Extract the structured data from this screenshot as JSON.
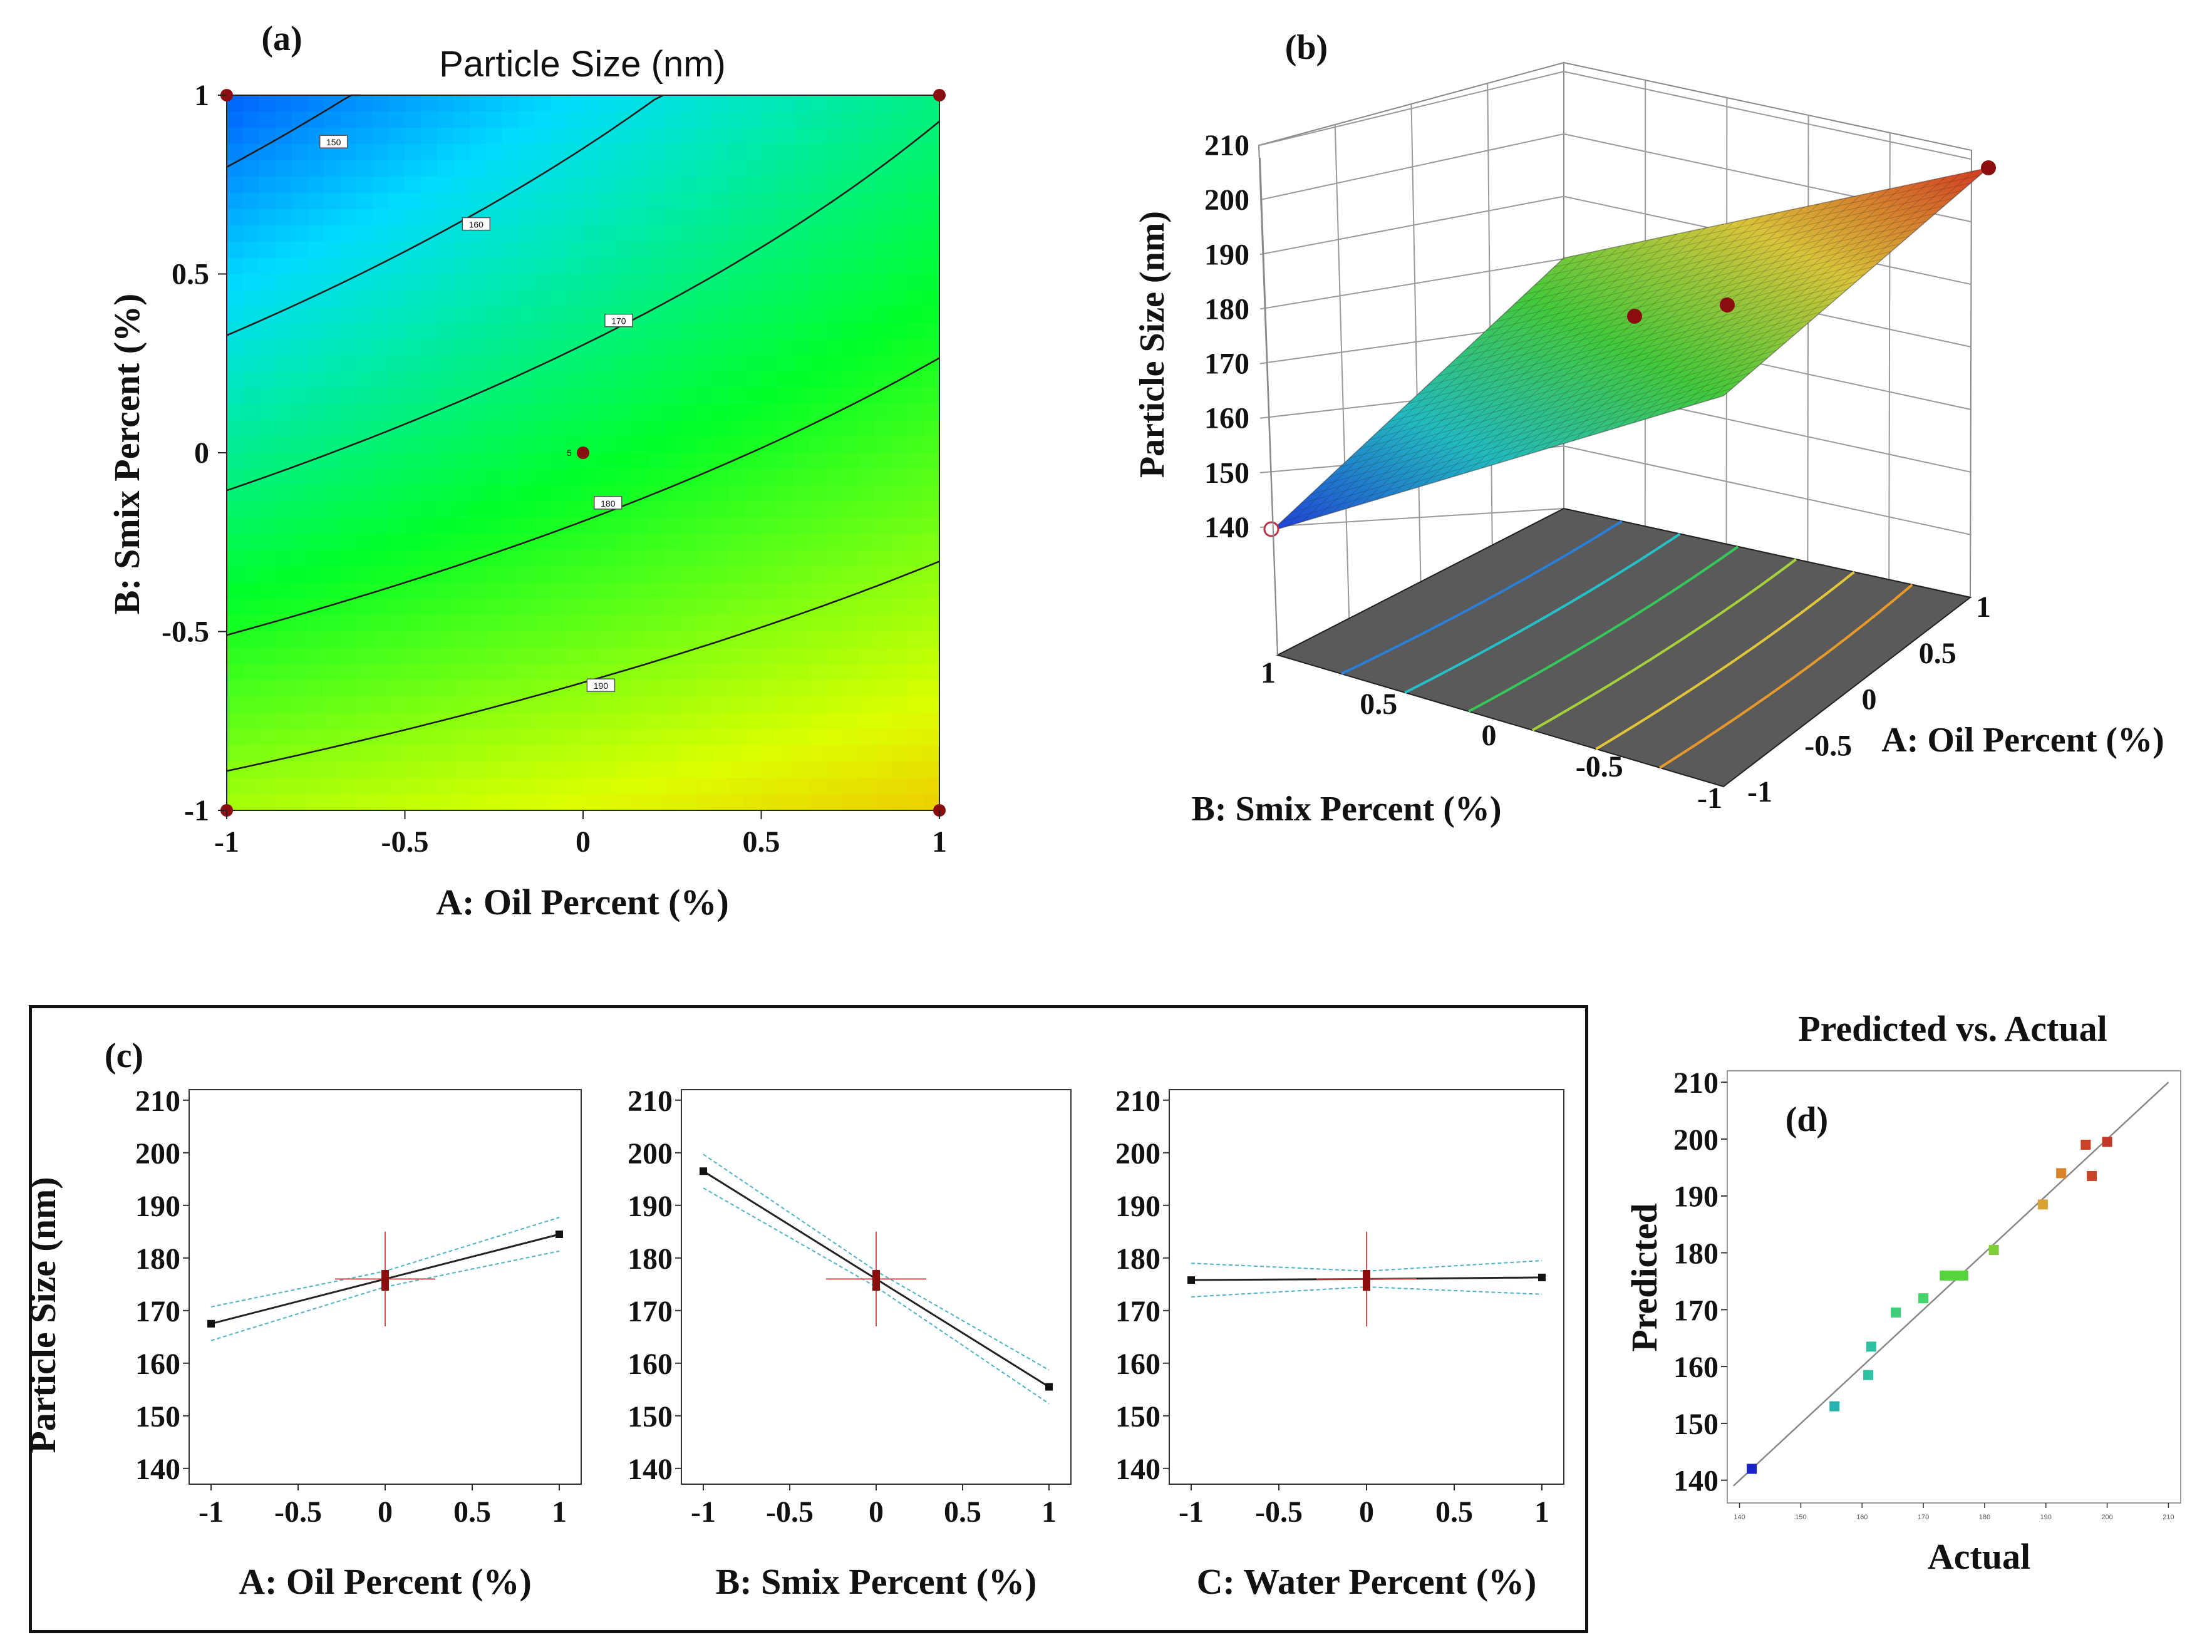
{
  "chart_data": [
    {
      "id": "a",
      "type": "heatmap",
      "subtype": "contour",
      "panel_label": "(a)",
      "title": "Particle Size (nm)",
      "xlabel": "A: Oil Percent (%)",
      "ylabel": "B: Smix Percent (%)",
      "xlim": [
        -1,
        1
      ],
      "ylim": [
        -1,
        1
      ],
      "xticks": [
        -1,
        -0.5,
        0,
        0.5,
        1
      ],
      "yticks": [
        -1,
        -0.5,
        0,
        0.5,
        1
      ],
      "xtick_labels": [
        "-1",
        "-0.5",
        "0",
        "0.5",
        "1"
      ],
      "ytick_labels": [
        "-1",
        "-0.5",
        "0",
        "0.5",
        "1"
      ],
      "contour_levels": [
        150,
        160,
        170,
        180,
        190
      ],
      "contour_labels": [
        "150",
        "160",
        "170",
        "180",
        "190"
      ],
      "design_points": [
        {
          "x": -1,
          "y": 1
        },
        {
          "x": 1,
          "y": 1
        },
        {
          "x": -1,
          "y": -1
        },
        {
          "x": 1,
          "y": -1
        },
        {
          "x": 0,
          "y": 0
        }
      ],
      "center_replicates": "5",
      "colors": {
        "low": "#0033ff",
        "mid": "#00ff00",
        "high": "#ff0000"
      }
    },
    {
      "id": "b",
      "type": "area",
      "subtype": "3d-surface",
      "panel_label": "(b)",
      "zlabel": "Particle Size (nm)",
      "xlabel": "A: Oil Percent (%)",
      "ylabel": "B: Smix Percent (%)",
      "zlim": [
        140,
        210
      ],
      "zticks": [
        140,
        150,
        160,
        170,
        180,
        190,
        200,
        210
      ],
      "ztick_labels": [
        "140",
        "150",
        "160",
        "170",
        "180",
        "190",
        "200",
        "210"
      ],
      "xticks": [
        -1,
        -0.5,
        0,
        0.5,
        1
      ],
      "xtick_labels": [
        "-1",
        "-0.5",
        "0",
        "0.5",
        "1"
      ],
      "yticks": [
        -1,
        -0.5,
        0,
        0.5,
        1
      ],
      "ytick_labels": [
        "-1",
        "-0.5",
        "0",
        "0.5",
        "1"
      ],
      "corner_values": {
        "A_-1_B_1": 141,
        "A_1_B_1": 160,
        "A_-1_B_-1": 180,
        "A_1_B_-1": 204
      },
      "design_points": [
        {
          "A": 1,
          "B": -1,
          "z": 204
        },
        {
          "A": 0,
          "B": 0,
          "z": 176
        },
        {
          "A": 0.2,
          "B": -0.2,
          "z": 180
        },
        {
          "A": -1,
          "B": 1,
          "z": 141
        }
      ]
    },
    {
      "id": "c",
      "type": "line",
      "subtype": "one-factor-effects",
      "panel_label": "(c)",
      "ylabel": "Particle Size (nm)",
      "ylim": [
        137,
        212
      ],
      "yticks": [
        140,
        150,
        160,
        170,
        180,
        190,
        200,
        210
      ],
      "ytick_labels": [
        "140",
        "150",
        "160",
        "170",
        "180",
        "190",
        "200",
        "210"
      ],
      "xticks": [
        -1,
        -0.5,
        0,
        0.5,
        1
      ],
      "xtick_labels": [
        "-1",
        "-0.5",
        "0",
        "0.5",
        "1"
      ],
      "subplots": [
        {
          "xlabel": "A: Oil Percent (%)",
          "x": [
            -1,
            0,
            1
          ],
          "y": [
            167.5,
            176,
            184.5
          ],
          "ci_halfwidth": [
            3.2,
            1.5,
            3.2
          ],
          "center_points": [
            177,
            176,
            175,
            174.5,
            176.5
          ],
          "center_error": 9
        },
        {
          "xlabel": "B: Smix Percent (%)",
          "x": [
            -1,
            0,
            1
          ],
          "y": [
            196.5,
            176,
            155.5
          ],
          "ci_halfwidth": [
            3.2,
            1.5,
            3.2
          ],
          "center_points": [
            177,
            176,
            175,
            174.5,
            176.5
          ],
          "center_error": 9
        },
        {
          "xlabel": "C: Water Percent (%)",
          "x": [
            -1,
            0,
            1
          ],
          "y": [
            175.8,
            176,
            176.3
          ],
          "ci_halfwidth": [
            3.2,
            1.5,
            3.2
          ],
          "center_points": [
            177,
            176,
            175,
            174.5,
            176.5
          ],
          "center_error": 9
        }
      ]
    },
    {
      "id": "d",
      "type": "scatter",
      "panel_label": "(d)",
      "title": "Predicted vs. Actual",
      "xlabel": "Actual",
      "ylabel": "Predicted",
      "xlim": [
        140,
        210
      ],
      "ylim": [
        136,
        212
      ],
      "xticks": [
        140,
        150,
        160,
        170,
        180,
        190,
        200,
        210
      ],
      "xtick_labels": [
        "140",
        "150",
        "160",
        "170",
        "180",
        "190",
        "200",
        "210"
      ],
      "yticks": [
        140,
        150,
        160,
        170,
        180,
        190,
        200,
        210
      ],
      "ytick_labels": [
        "140",
        "150",
        "160",
        "170",
        "180",
        "190",
        "200",
        "210"
      ],
      "points": [
        {
          "x": 142,
          "y": 142,
          "color": "#1a24c8"
        },
        {
          "x": 155.5,
          "y": 153,
          "color": "#27b3b0"
        },
        {
          "x": 161,
          "y": 158.5,
          "color": "#2ec2a4"
        },
        {
          "x": 161.5,
          "y": 163.5,
          "color": "#2ec2a4"
        },
        {
          "x": 165.5,
          "y": 169.5,
          "color": "#3ccf7a"
        },
        {
          "x": 170,
          "y": 172,
          "color": "#44d46a"
        },
        {
          "x": 173.5,
          "y": 176,
          "color": "#56d43e"
        },
        {
          "x": 175,
          "y": 176,
          "color": "#56d43e"
        },
        {
          "x": 176.5,
          "y": 176,
          "color": "#56d43e"
        },
        {
          "x": 181.5,
          "y": 180.5,
          "color": "#7ecf3a"
        },
        {
          "x": 189.5,
          "y": 188.5,
          "color": "#d9a233"
        },
        {
          "x": 192.5,
          "y": 194,
          "color": "#d9832b"
        },
        {
          "x": 196.5,
          "y": 199,
          "color": "#c9432a"
        },
        {
          "x": 197.5,
          "y": 193.5,
          "color": "#c9432a"
        },
        {
          "x": 200,
          "y": 199.5,
          "color": "#c43a28"
        }
      ],
      "reference_line": [
        [
          139,
          139
        ],
        [
          210,
          210
        ]
      ]
    }
  ]
}
